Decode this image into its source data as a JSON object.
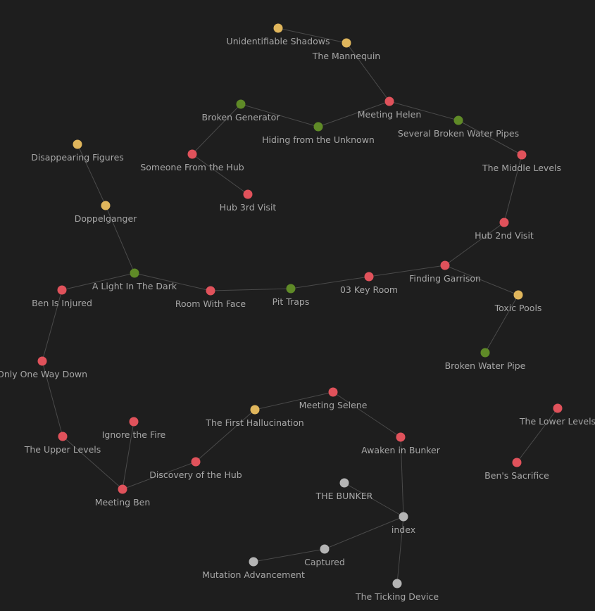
{
  "colors": {
    "background": "#1e1e1e",
    "edge": "#4a4a4a",
    "label": "#a6a6a6",
    "red": "#e0525b",
    "yellow": "#e0b65c",
    "green": "#5f8a27",
    "gray": "#b4b4b4"
  },
  "nodes": [
    {
      "id": "unidentifiable-shadows",
      "label": "Unidentifiable Shadows",
      "color": "yellow"
    },
    {
      "id": "the-mannequin",
      "label": "The Mannequin",
      "color": "yellow"
    },
    {
      "id": "meeting-helen",
      "label": "Meeting Helen",
      "color": "red"
    },
    {
      "id": "broken-generator",
      "label": "Broken Generator",
      "color": "green"
    },
    {
      "id": "hiding-from-the-unknown",
      "label": "Hiding from the Unknown",
      "color": "green"
    },
    {
      "id": "several-broken-water-pipes",
      "label": "Several Broken Water Pipes",
      "color": "green"
    },
    {
      "id": "disappearing-figures",
      "label": "Disappearing Figures",
      "color": "yellow"
    },
    {
      "id": "someone-from-the-hub",
      "label": "Someone From the Hub",
      "color": "red"
    },
    {
      "id": "the-middle-levels",
      "label": "The Middle Levels",
      "color": "red"
    },
    {
      "id": "hub-3rd-visit",
      "label": "Hub 3rd Visit",
      "color": "red"
    },
    {
      "id": "doppelganger",
      "label": "Doppelganger",
      "color": "yellow"
    },
    {
      "id": "hub-2nd-visit",
      "label": "Hub 2nd Visit",
      "color": "red"
    },
    {
      "id": "finding-garrison",
      "label": "Finding Garrison",
      "color": "red"
    },
    {
      "id": "a-light-in-the-dark",
      "label": "A Light In The Dark",
      "color": "green"
    },
    {
      "id": "03-key-room",
      "label": "03 Key Room",
      "color": "red"
    },
    {
      "id": "ben-is-injured",
      "label": "Ben Is Injured",
      "color": "red"
    },
    {
      "id": "room-with-face",
      "label": "Room With Face",
      "color": "red"
    },
    {
      "id": "pit-traps",
      "label": "Pit Traps",
      "color": "green"
    },
    {
      "id": "toxic-pools",
      "label": "Toxic Pools",
      "color": "yellow"
    },
    {
      "id": "broken-water-pipe",
      "label": "Broken Water Pipe",
      "color": "green"
    },
    {
      "id": "only-one-way-down",
      "label": "Only One Way Down",
      "color": "red"
    },
    {
      "id": "meeting-selene",
      "label": "Meeting Selene",
      "color": "red"
    },
    {
      "id": "the-first-hallucination",
      "label": "The First Hallucination",
      "color": "yellow"
    },
    {
      "id": "the-lower-levels",
      "label": "The Lower Levels",
      "color": "red"
    },
    {
      "id": "ignore-the-fire",
      "label": "Ignore the Fire",
      "color": "red"
    },
    {
      "id": "the-upper-levels",
      "label": "The Upper Levels",
      "color": "red"
    },
    {
      "id": "awaken-in-bunker",
      "label": "Awaken in Bunker",
      "color": "red"
    },
    {
      "id": "discovery-of-the-hub",
      "label": "Discovery of the Hub",
      "color": "red"
    },
    {
      "id": "bens-sacrifice",
      "label": "Ben's Sacrifice",
      "color": "red"
    },
    {
      "id": "meeting-ben",
      "label": "Meeting Ben",
      "color": "red"
    },
    {
      "id": "the-bunker",
      "label": "THE BUNKER",
      "color": "gray"
    },
    {
      "id": "index",
      "label": "index",
      "color": "gray"
    },
    {
      "id": "captured",
      "label": "Captured",
      "color": "gray"
    },
    {
      "id": "mutation-advancement",
      "label": "Mutation Advancement",
      "color": "gray"
    },
    {
      "id": "the-ticking-device",
      "label": "The Ticking Device",
      "color": "gray"
    }
  ],
  "edges": [
    [
      "unidentifiable-shadows",
      "the-mannequin"
    ],
    [
      "the-mannequin",
      "meeting-helen"
    ],
    [
      "meeting-helen",
      "hiding-from-the-unknown"
    ],
    [
      "meeting-helen",
      "several-broken-water-pipes"
    ],
    [
      "broken-generator",
      "hiding-from-the-unknown"
    ],
    [
      "broken-generator",
      "someone-from-the-hub"
    ],
    [
      "someone-from-the-hub",
      "hub-3rd-visit"
    ],
    [
      "several-broken-water-pipes",
      "the-middle-levels"
    ],
    [
      "the-middle-levels",
      "hub-2nd-visit"
    ],
    [
      "hub-2nd-visit",
      "finding-garrison"
    ],
    [
      "finding-garrison",
      "03-key-room"
    ],
    [
      "finding-garrison",
      "toxic-pools"
    ],
    [
      "toxic-pools",
      "broken-water-pipe"
    ],
    [
      "03-key-room",
      "pit-traps"
    ],
    [
      "pit-traps",
      "room-with-face"
    ],
    [
      "room-with-face",
      "a-light-in-the-dark"
    ],
    [
      "a-light-in-the-dark",
      "doppelganger"
    ],
    [
      "doppelganger",
      "disappearing-figures"
    ],
    [
      "a-light-in-the-dark",
      "ben-is-injured"
    ],
    [
      "ben-is-injured",
      "only-one-way-down"
    ],
    [
      "only-one-way-down",
      "the-upper-levels"
    ],
    [
      "the-upper-levels",
      "meeting-ben"
    ],
    [
      "ignore-the-fire",
      "meeting-ben"
    ],
    [
      "meeting-ben",
      "discovery-of-the-hub"
    ],
    [
      "discovery-of-the-hub",
      "the-first-hallucination"
    ],
    [
      "the-first-hallucination",
      "meeting-selene"
    ],
    [
      "meeting-selene",
      "awaken-in-bunker"
    ],
    [
      "awaken-in-bunker",
      "index"
    ],
    [
      "the-bunker",
      "index"
    ],
    [
      "index",
      "captured"
    ],
    [
      "captured",
      "mutation-advancement"
    ],
    [
      "index",
      "the-ticking-device"
    ],
    [
      "the-lower-levels",
      "bens-sacrifice"
    ]
  ]
}
